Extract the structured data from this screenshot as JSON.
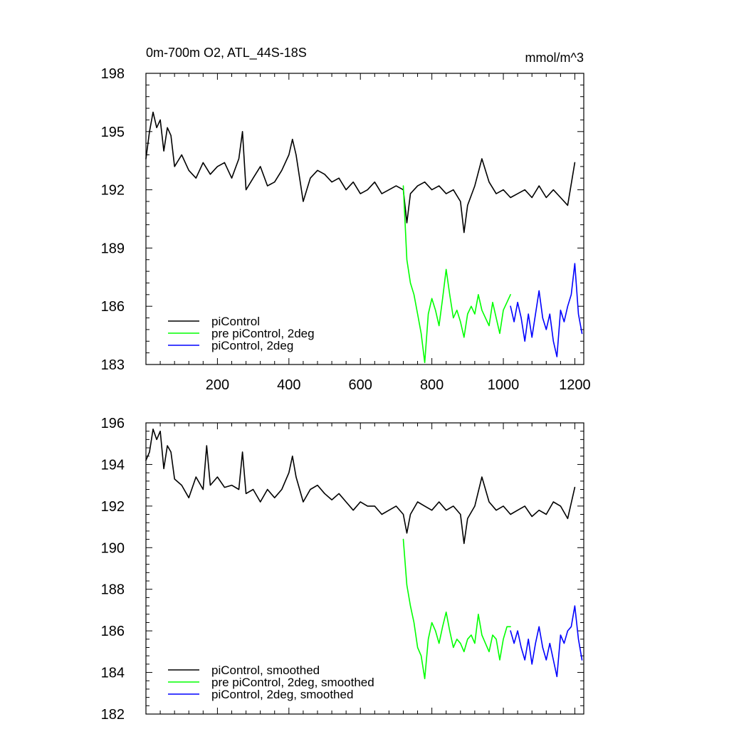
{
  "chart_data": [
    {
      "type": "line",
      "title": "0m-700m O2, ATL_44S-18S",
      "units": "mmol/m^3",
      "xlim": [
        0,
        1225
      ],
      "ylim": [
        183,
        198
      ],
      "x_ticks": [
        200,
        400,
        600,
        800,
        1000,
        1200
      ],
      "y_ticks": [
        183,
        186,
        189,
        192,
        195,
        198
      ],
      "legend_position": "bottom-left",
      "series": [
        {
          "name": "piControl",
          "color": "#000000",
          "points": [
            [
              0,
              193.6
            ],
            [
              10,
              195.0
            ],
            [
              20,
              196.0
            ],
            [
              30,
              195.2
            ],
            [
              40,
              195.6
            ],
            [
              50,
              194.0
            ],
            [
              60,
              195.2
            ],
            [
              70,
              194.8
            ],
            [
              80,
              193.2
            ],
            [
              100,
              193.8
            ],
            [
              120,
              193.0
            ],
            [
              140,
              192.6
            ],
            [
              160,
              193.4
            ],
            [
              180,
              192.8
            ],
            [
              200,
              193.2
            ],
            [
              220,
              193.4
            ],
            [
              240,
              192.6
            ],
            [
              260,
              193.6
            ],
            [
              270,
              195.0
            ],
            [
              280,
              192.0
            ],
            [
              300,
              192.6
            ],
            [
              320,
              193.2
            ],
            [
              340,
              192.2
            ],
            [
              360,
              192.4
            ],
            [
              380,
              193.0
            ],
            [
              400,
              193.8
            ],
            [
              410,
              194.6
            ],
            [
              420,
              193.8
            ],
            [
              440,
              191.4
            ],
            [
              460,
              192.6
            ],
            [
              480,
              193.0
            ],
            [
              500,
              192.8
            ],
            [
              520,
              192.4
            ],
            [
              540,
              192.6
            ],
            [
              560,
              192.0
            ],
            [
              580,
              192.4
            ],
            [
              600,
              191.8
            ],
            [
              620,
              192.0
            ],
            [
              640,
              192.4
            ],
            [
              660,
              191.8
            ],
            [
              680,
              192.0
            ],
            [
              700,
              192.2
            ],
            [
              720,
              192.0
            ],
            [
              730,
              190.3
            ],
            [
              740,
              191.8
            ],
            [
              760,
              192.2
            ],
            [
              780,
              192.4
            ],
            [
              800,
              192.0
            ],
            [
              820,
              192.2
            ],
            [
              840,
              191.8
            ],
            [
              860,
              192.0
            ],
            [
              880,
              191.4
            ],
            [
              890,
              189.8
            ],
            [
              900,
              191.2
            ],
            [
              920,
              192.2
            ],
            [
              940,
              193.6
            ],
            [
              960,
              192.4
            ],
            [
              980,
              191.8
            ],
            [
              1000,
              192.0
            ],
            [
              1020,
              191.6
            ],
            [
              1040,
              191.8
            ],
            [
              1060,
              192.0
            ],
            [
              1080,
              191.6
            ],
            [
              1100,
              192.2
            ],
            [
              1120,
              191.6
            ],
            [
              1140,
              192.0
            ],
            [
              1160,
              191.6
            ],
            [
              1180,
              191.2
            ],
            [
              1200,
              193.4
            ]
          ]
        },
        {
          "name": "pre piControl, 2deg",
          "color": "#00ff00",
          "points": [
            [
              720,
              192.2
            ],
            [
              730,
              188.4
            ],
            [
              740,
              187.2
            ],
            [
              750,
              186.6
            ],
            [
              760,
              185.6
            ],
            [
              770,
              184.6
            ],
            [
              780,
              183.1
            ],
            [
              790,
              185.6
            ],
            [
              800,
              186.4
            ],
            [
              810,
              185.8
            ],
            [
              820,
              185.0
            ],
            [
              830,
              186.4
            ],
            [
              840,
              187.9
            ],
            [
              850,
              186.6
            ],
            [
              860,
              185.4
            ],
            [
              870,
              185.8
            ],
            [
              880,
              185.2
            ],
            [
              890,
              184.4
            ],
            [
              900,
              185.6
            ],
            [
              910,
              186.0
            ],
            [
              920,
              185.6
            ],
            [
              930,
              186.6
            ],
            [
              940,
              185.8
            ],
            [
              950,
              185.4
            ],
            [
              960,
              185.0
            ],
            [
              970,
              186.2
            ],
            [
              980,
              185.4
            ],
            [
              990,
              184.6
            ],
            [
              1000,
              185.8
            ],
            [
              1010,
              186.2
            ],
            [
              1020,
              186.6
            ]
          ]
        },
        {
          "name": "piControl, 2deg",
          "color": "#0000ff",
          "points": [
            [
              1020,
              186.0
            ],
            [
              1030,
              185.2
            ],
            [
              1040,
              186.2
            ],
            [
              1050,
              185.4
            ],
            [
              1060,
              184.2
            ],
            [
              1070,
              185.6
            ],
            [
              1080,
              184.4
            ],
            [
              1090,
              185.6
            ],
            [
              1100,
              186.8
            ],
            [
              1110,
              185.4
            ],
            [
              1120,
              184.8
            ],
            [
              1130,
              185.6
            ],
            [
              1140,
              184.2
            ],
            [
              1150,
              183.4
            ],
            [
              1160,
              185.8
            ],
            [
              1170,
              185.2
            ],
            [
              1180,
              186.0
            ],
            [
              1190,
              186.6
            ],
            [
              1200,
              188.2
            ],
            [
              1210,
              185.6
            ],
            [
              1220,
              184.6
            ]
          ]
        }
      ]
    },
    {
      "type": "line",
      "xlim": [
        0,
        1225
      ],
      "ylim": [
        182,
        196
      ],
      "y_ticks": [
        182,
        184,
        186,
        188,
        190,
        192,
        194,
        196
      ],
      "legend_position": "bottom-left",
      "series": [
        {
          "name": "piControl, smoothed",
          "color": "#000000",
          "points": [
            [
              0,
              194.2
            ],
            [
              10,
              194.6
            ],
            [
              20,
              195.7
            ],
            [
              30,
              195.2
            ],
            [
              40,
              195.6
            ],
            [
              50,
              193.8
            ],
            [
              60,
              194.9
            ],
            [
              70,
              194.6
            ],
            [
              80,
              193.3
            ],
            [
              100,
              193.0
            ],
            [
              120,
              192.4
            ],
            [
              140,
              193.4
            ],
            [
              160,
              192.8
            ],
            [
              170,
              194.9
            ],
            [
              180,
              193.0
            ],
            [
              200,
              193.4
            ],
            [
              220,
              192.9
            ],
            [
              240,
              193.0
            ],
            [
              260,
              192.8
            ],
            [
              270,
              194.6
            ],
            [
              280,
              192.6
            ],
            [
              300,
              192.8
            ],
            [
              320,
              192.2
            ],
            [
              340,
              192.8
            ],
            [
              360,
              192.4
            ],
            [
              380,
              192.8
            ],
            [
              400,
              193.6
            ],
            [
              410,
              194.4
            ],
            [
              420,
              193.4
            ],
            [
              440,
              192.2
            ],
            [
              460,
              192.8
            ],
            [
              480,
              193.0
            ],
            [
              500,
              192.6
            ],
            [
              520,
              192.3
            ],
            [
              540,
              192.6
            ],
            [
              560,
              192.2
            ],
            [
              580,
              191.8
            ],
            [
              600,
              192.2
            ],
            [
              620,
              192.0
            ],
            [
              640,
              192.0
            ],
            [
              660,
              191.6
            ],
            [
              680,
              191.8
            ],
            [
              700,
              192.0
            ],
            [
              720,
              191.6
            ],
            [
              730,
              190.7
            ],
            [
              740,
              191.6
            ],
            [
              760,
              192.2
            ],
            [
              780,
              192.0
            ],
            [
              800,
              191.8
            ],
            [
              820,
              192.2
            ],
            [
              840,
              191.8
            ],
            [
              860,
              192.0
            ],
            [
              880,
              191.6
            ],
            [
              890,
              190.2
            ],
            [
              900,
              191.4
            ],
            [
              920,
              192.0
            ],
            [
              940,
              193.4
            ],
            [
              960,
              192.2
            ],
            [
              980,
              191.8
            ],
            [
              1000,
              192.0
            ],
            [
              1020,
              191.6
            ],
            [
              1040,
              191.8
            ],
            [
              1060,
              192.0
            ],
            [
              1080,
              191.5
            ],
            [
              1100,
              191.8
            ],
            [
              1120,
              191.6
            ],
            [
              1140,
              192.2
            ],
            [
              1160,
              192.0
            ],
            [
              1180,
              191.4
            ],
            [
              1200,
              192.9
            ]
          ]
        },
        {
          "name": "pre piControl, 2deg, smoothed",
          "color": "#00ff00",
          "points": [
            [
              720,
              190.4
            ],
            [
              730,
              188.2
            ],
            [
              740,
              187.2
            ],
            [
              750,
              186.4
            ],
            [
              760,
              185.2
            ],
            [
              770,
              184.8
            ],
            [
              780,
              183.7
            ],
            [
              790,
              185.6
            ],
            [
              800,
              186.4
            ],
            [
              810,
              186.0
            ],
            [
              820,
              185.4
            ],
            [
              830,
              186.2
            ],
            [
              840,
              186.9
            ],
            [
              850,
              186.0
            ],
            [
              860,
              185.2
            ],
            [
              870,
              185.6
            ],
            [
              880,
              185.4
            ],
            [
              890,
              185.0
            ],
            [
              900,
              185.6
            ],
            [
              910,
              185.8
            ],
            [
              920,
              185.4
            ],
            [
              930,
              186.8
            ],
            [
              940,
              185.8
            ],
            [
              950,
              185.4
            ],
            [
              960,
              185.0
            ],
            [
              970,
              185.8
            ],
            [
              980,
              185.6
            ],
            [
              990,
              184.6
            ],
            [
              1000,
              185.6
            ],
            [
              1010,
              186.2
            ],
            [
              1020,
              186.2
            ]
          ]
        },
        {
          "name": "piControl, 2deg, smoothed",
          "color": "#0000ff",
          "points": [
            [
              1020,
              186.0
            ],
            [
              1030,
              185.4
            ],
            [
              1040,
              186.0
            ],
            [
              1050,
              185.2
            ],
            [
              1060,
              184.6
            ],
            [
              1070,
              185.6
            ],
            [
              1080,
              184.4
            ],
            [
              1090,
              185.4
            ],
            [
              1100,
              186.2
            ],
            [
              1110,
              185.2
            ],
            [
              1120,
              184.6
            ],
            [
              1130,
              185.4
            ],
            [
              1140,
              184.6
            ],
            [
              1150,
              183.8
            ],
            [
              1160,
              185.8
            ],
            [
              1170,
              185.4
            ],
            [
              1180,
              186.0
            ],
            [
              1190,
              186.2
            ],
            [
              1200,
              187.2
            ],
            [
              1210,
              185.6
            ],
            [
              1220,
              184.6
            ]
          ]
        }
      ]
    }
  ]
}
